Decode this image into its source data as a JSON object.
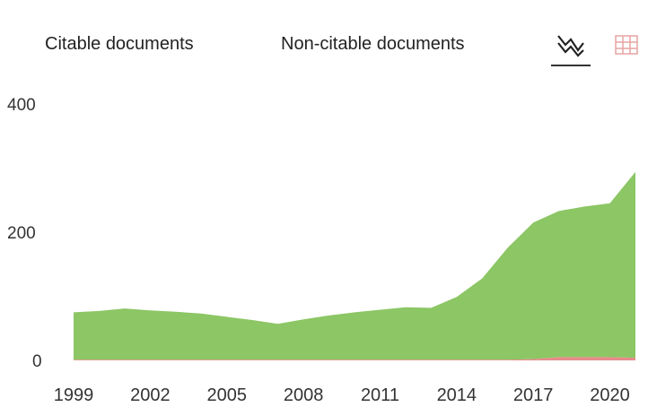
{
  "legend": {
    "citable_label": "Citable documents",
    "noncitable_label": "Non-citable documents"
  },
  "controls": {
    "line_view_icon": "line-chart-icon",
    "table_view_icon": "table-grid-icon"
  },
  "chart_data": {
    "type": "area",
    "x": [
      1999,
      2000,
      2001,
      2002,
      2003,
      2004,
      2005,
      2006,
      2007,
      2008,
      2009,
      2010,
      2011,
      2012,
      2013,
      2014,
      2015,
      2016,
      2017,
      2018,
      2019,
      2020,
      2021
    ],
    "series": [
      {
        "name": "Non-citable documents",
        "color": "#e88b8b",
        "values": [
          1,
          1,
          1,
          1,
          1,
          1,
          1,
          1,
          1,
          1,
          1,
          1,
          1,
          1,
          1,
          1,
          1,
          1,
          2,
          5,
          5,
          5,
          4
        ]
      },
      {
        "name": "Citable documents",
        "color": "#8cc665",
        "values": [
          74,
          76,
          80,
          77,
          75,
          72,
          67,
          62,
          56,
          63,
          69,
          74,
          78,
          82,
          81,
          98,
          127,
          175,
          213,
          228,
          235,
          240,
          290
        ]
      }
    ],
    "stacked": true,
    "yticks": [
      0,
      200,
      400
    ],
    "xticks": [
      1999,
      2002,
      2005,
      2008,
      2011,
      2014,
      2017,
      2020
    ],
    "ylim": [
      0,
      400
    ],
    "legend_position": "top",
    "grid": false
  }
}
